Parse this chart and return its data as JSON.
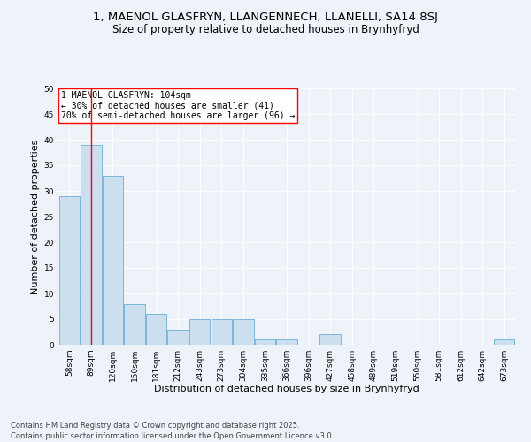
{
  "title_line1": "1, MAENOL GLASFRYN, LLANGENNECH, LLANELLI, SA14 8SJ",
  "title_line2": "Size of property relative to detached houses in Brynhyfryd",
  "xlabel": "Distribution of detached houses by size in Brynhyfryd",
  "ylabel": "Number of detached properties",
  "categories": [
    "58sqm",
    "89sqm",
    "120sqm",
    "150sqm",
    "181sqm",
    "212sqm",
    "243sqm",
    "273sqm",
    "304sqm",
    "335sqm",
    "366sqm",
    "396sqm",
    "427sqm",
    "458sqm",
    "489sqm",
    "519sqm",
    "550sqm",
    "581sqm",
    "612sqm",
    "642sqm",
    "673sqm"
  ],
  "values": [
    29,
    39,
    33,
    8,
    6,
    3,
    5,
    5,
    5,
    1,
    1,
    0,
    2,
    0,
    0,
    0,
    0,
    0,
    0,
    0,
    1
  ],
  "bar_color": "#ccdff0",
  "bar_edge_color": "#6aafd6",
  "annotation_text_line1": "1 MAENOL GLASFRYN: 104sqm",
  "annotation_text_line2": "← 30% of detached houses are smaller (41)",
  "annotation_text_line3": "70% of semi-detached houses are larger (96) →",
  "annotation_box_facecolor": "white",
  "annotation_box_edgecolor": "red",
  "vline_color": "red",
  "vline_x": 1.0,
  "ylim": [
    0,
    50
  ],
  "yticks": [
    0,
    5,
    10,
    15,
    20,
    25,
    30,
    35,
    40,
    45,
    50
  ],
  "footer_line1": "Contains HM Land Registry data © Crown copyright and database right 2025.",
  "footer_line2": "Contains public sector information licensed under the Open Government Licence v3.0.",
  "background_color": "#eef2f9",
  "plot_bg_color": "#eef2f9",
  "grid_color": "#ffffff",
  "title_fontsize": 9.5,
  "subtitle_fontsize": 8.5,
  "axis_label_fontsize": 8,
  "tick_fontsize": 6.5,
  "annotation_fontsize": 7,
  "footer_fontsize": 6
}
